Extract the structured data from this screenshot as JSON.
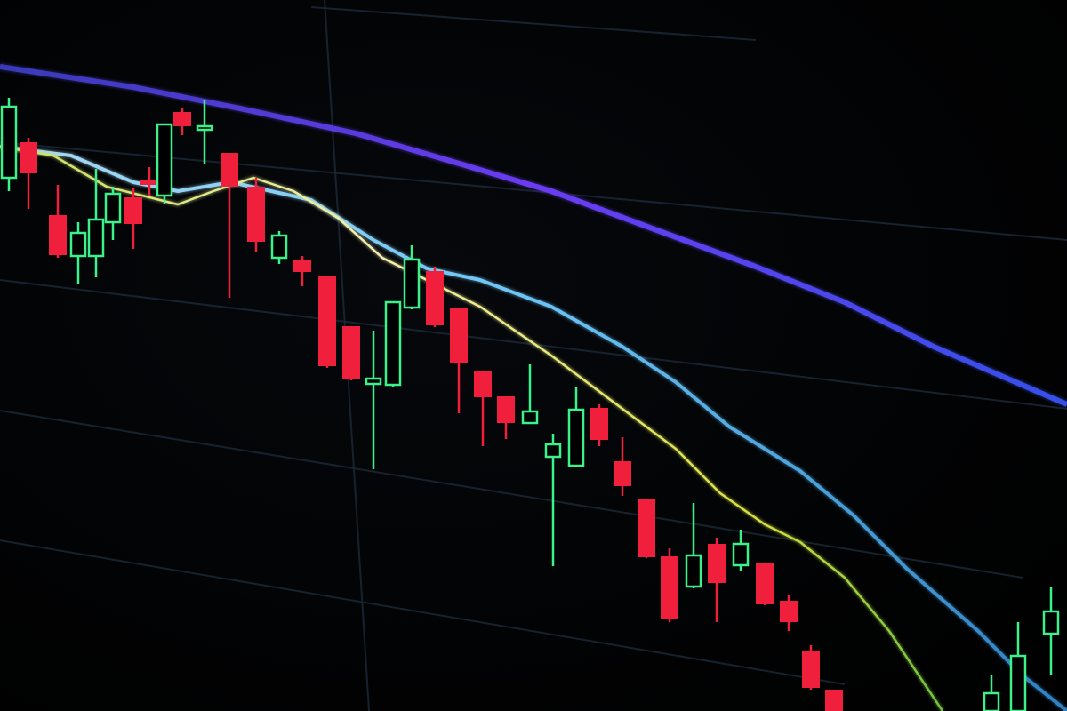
{
  "photo": {
    "subject": "candlestick-chart-on-screen",
    "colors": {
      "background": "#000000",
      "bullish_candle": "#3cf08a",
      "bearish_candle": "#f0203c",
      "grid": "#1c2a38",
      "slow_moving_average": "#4a3cf0",
      "medium_moving_average": "#5ab8f0",
      "fast_moving_average": "#e8e890"
    },
    "trend": "downtrend"
  }
}
